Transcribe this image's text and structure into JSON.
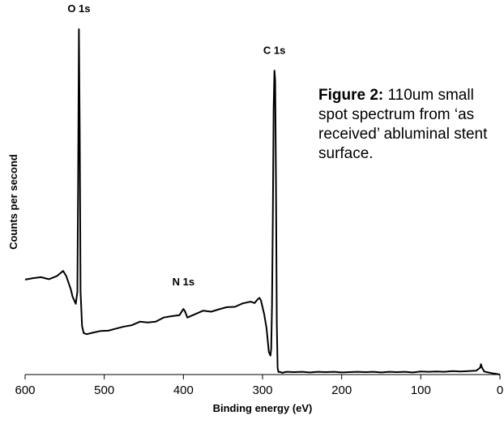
{
  "caption": {
    "title": "Figure 2:",
    "text": "110um small spot spectrum from ‘as received’ abluminal stent surface."
  },
  "chart_data": {
    "type": "line",
    "xlabel": "Binding energy (eV)",
    "ylabel": "Counts per second",
    "xlim": [
      600,
      0
    ],
    "x_reversed": true,
    "ylim": [
      0,
      100
    ],
    "y_ticks_shown": false,
    "grid": false,
    "xticks": [
      600,
      500,
      400,
      300,
      200,
      100,
      0
    ],
    "xtick_labels": [
      "600",
      "500",
      "400",
      "300",
      "200",
      "100",
      "0"
    ],
    "line_color": "#000000",
    "annotations": [
      {
        "text": "O 1s",
        "x": 532,
        "y": 103
      },
      {
        "text": "N 1s",
        "x": 400,
        "y": 24
      },
      {
        "text": "C 1s",
        "x": 285,
        "y": 91
      }
    ],
    "series": [
      {
        "x": [
          600,
          590,
          580,
          570,
          560,
          552,
          548,
          545,
          542,
          540,
          538,
          536,
          534,
          533,
          532,
          531,
          530,
          528,
          526,
          522,
          515,
          505,
          495,
          485,
          475,
          465,
          455,
          445,
          435,
          425,
          415,
          405,
          400,
          398,
          395,
          385,
          375,
          365,
          355,
          345,
          335,
          325,
          315,
          310,
          306,
          304,
          302,
          298,
          295,
          292,
          290,
          289,
          288,
          287,
          286,
          285,
          284,
          283,
          282,
          281,
          280,
          279,
          278,
          275,
          270,
          260,
          250,
          240,
          230,
          220,
          210,
          200,
          190,
          180,
          170,
          160,
          150,
          140,
          130,
          120,
          110,
          100,
          90,
          80,
          70,
          60,
          50,
          40,
          30,
          25,
          24,
          23,
          20,
          15,
          10,
          5,
          0
        ],
        "y": [
          27.5,
          27.9,
          28.2,
          27.6,
          28.5,
          30.0,
          28.5,
          26.5,
          24.5,
          22.5,
          21.5,
          20.5,
          24.0,
          55.0,
          100.0,
          70.0,
          24.0,
          14.0,
          12.0,
          11.7,
          12.1,
          12.6,
          12.7,
          13.3,
          13.9,
          14.3,
          15.3,
          15.1,
          15.3,
          16.5,
          16.9,
          17.2,
          19.0,
          18.3,
          16.5,
          17.5,
          18.5,
          18.2,
          18.9,
          19.5,
          19.6,
          20.6,
          21.1,
          20.7,
          21.8,
          22.2,
          21.5,
          17.5,
          13.5,
          6.5,
          5.5,
          7.5,
          20.0,
          45.0,
          77.0,
          88.0,
          85.0,
          55.0,
          15.0,
          2.0,
          0.8,
          0.7,
          0.8,
          0.5,
          0.8,
          0.7,
          0.8,
          0.6,
          0.8,
          0.7,
          0.8,
          0.6,
          0.7,
          0.8,
          0.7,
          0.8,
          0.6,
          0.8,
          0.7,
          0.8,
          0.6,
          0.9,
          0.8,
          0.9,
          0.8,
          1.0,
          0.9,
          1.0,
          1.1,
          2.0,
          3.0,
          2.2,
          0.9,
          0.6,
          0.4,
          0.2,
          0.0
        ]
      }
    ]
  }
}
